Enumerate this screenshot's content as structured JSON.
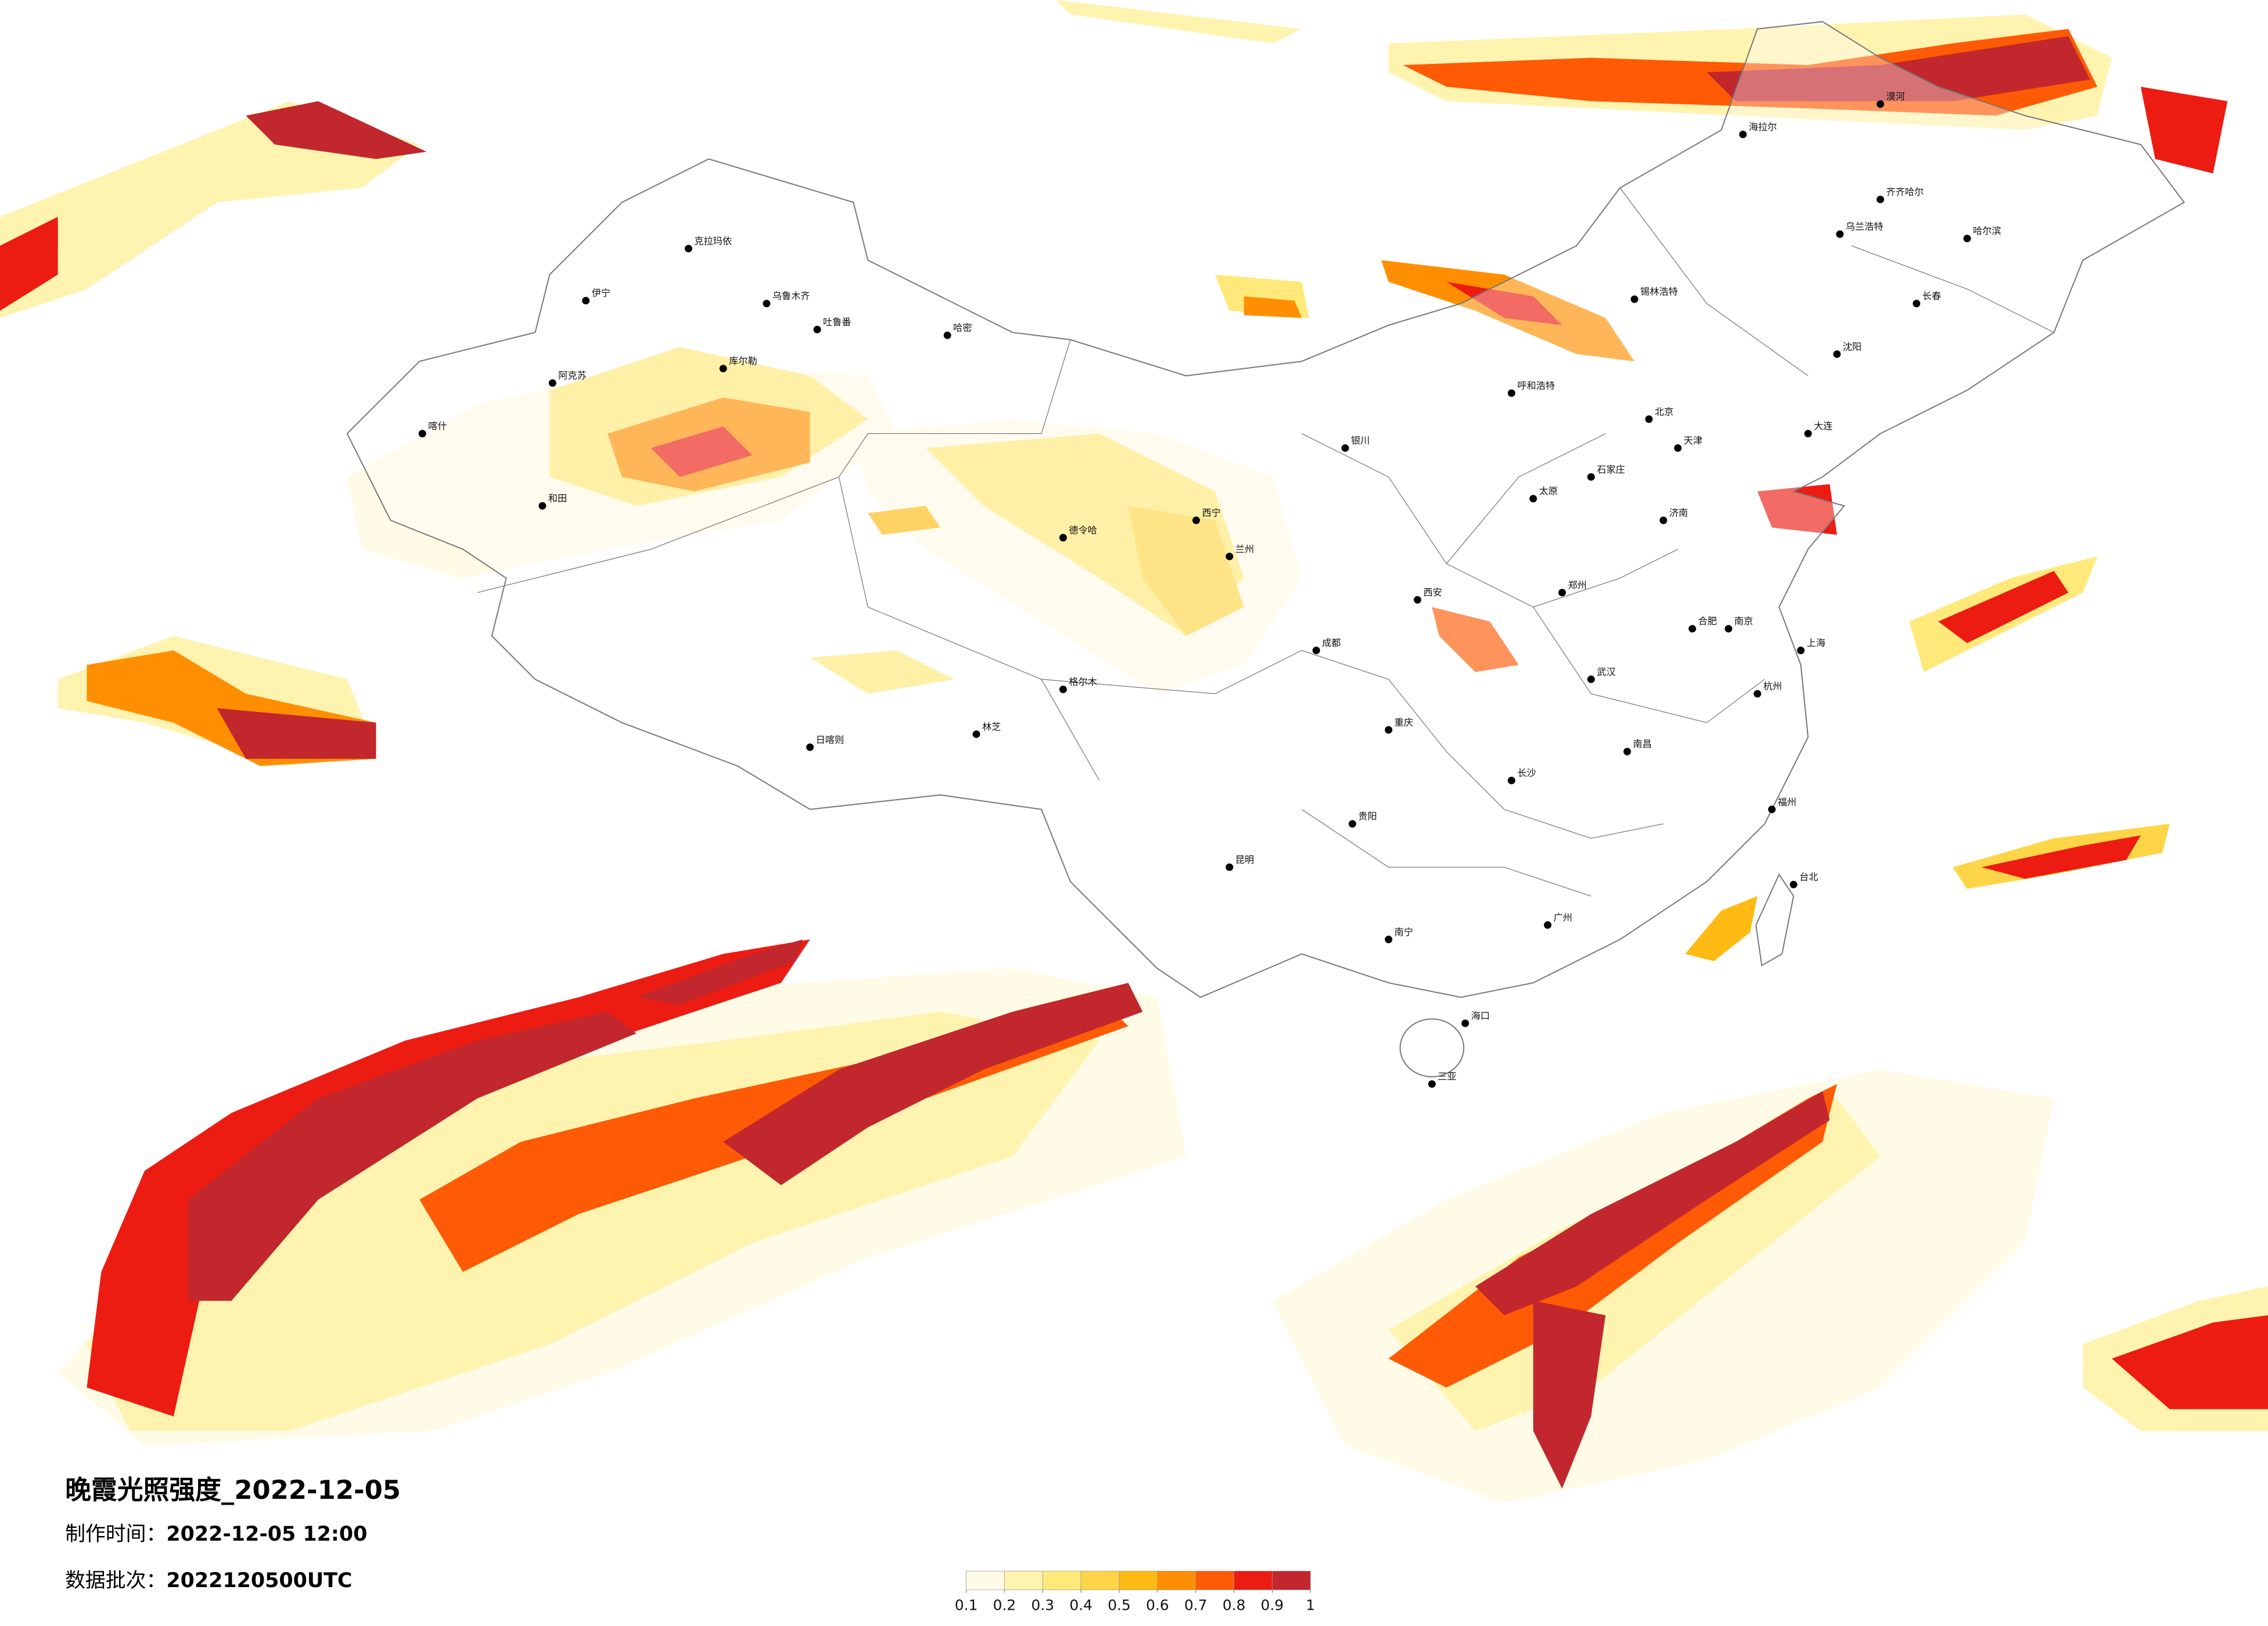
{
  "map": {
    "title": "晚霞光照强度_2022-12-05",
    "production_time": {
      "label": "制作时间：",
      "value": "2022-12-05 12:00"
    },
    "data_batch": {
      "label": "数据批次：",
      "value": "2022120500UTC"
    },
    "legend": {
      "ticks": [
        0.1,
        0.2,
        0.3,
        0.4,
        0.5,
        0.6,
        0.7,
        0.8,
        0.9,
        1
      ],
      "colors": [
        "#fffbe6",
        "#fff3b0",
        "#ffe97a",
        "#ffd548",
        "#ffbb14",
        "#ff8f00",
        "#ff5a05",
        "#ec1c12",
        "#c1272d"
      ]
    },
    "cities": [
      {
        "name": "克拉玛依"
      },
      {
        "name": "乌鲁木齐"
      },
      {
        "name": "伊宁"
      },
      {
        "name": "吐鲁番"
      },
      {
        "name": "哈密"
      },
      {
        "name": "阿克苏"
      },
      {
        "name": "喀什"
      },
      {
        "name": "和田"
      },
      {
        "name": "库尔勒"
      },
      {
        "name": "格尔木"
      },
      {
        "name": "日喀则"
      },
      {
        "name": "林芝"
      },
      {
        "name": "西宁"
      },
      {
        "name": "兰州"
      },
      {
        "name": "银川"
      },
      {
        "name": "呼和浩特"
      },
      {
        "name": "北京"
      },
      {
        "name": "天津"
      },
      {
        "name": "石家庄"
      },
      {
        "name": "太原"
      },
      {
        "name": "济南"
      },
      {
        "name": "郑州"
      },
      {
        "name": "西安"
      },
      {
        "name": "成都"
      },
      {
        "name": "重庆"
      },
      {
        "name": "贵阳"
      },
      {
        "name": "昆明"
      },
      {
        "name": "南宁"
      },
      {
        "name": "广州"
      },
      {
        "name": "长沙"
      },
      {
        "name": "武汉"
      },
      {
        "name": "南昌"
      },
      {
        "name": "合肥"
      },
      {
        "name": "南京"
      },
      {
        "name": "上海"
      },
      {
        "name": "杭州"
      },
      {
        "name": "福州"
      },
      {
        "name": "哈尔滨"
      },
      {
        "name": "长春"
      },
      {
        "name": "沈阳"
      },
      {
        "name": "大连"
      },
      {
        "name": "齐齐哈尔"
      },
      {
        "name": "海口"
      },
      {
        "name": "三亚"
      },
      {
        "name": "台北"
      },
      {
        "name": "乌兰浩特"
      },
      {
        "name": "锡林浩特"
      },
      {
        "name": "海拉尔"
      },
      {
        "name": "漠河"
      },
      {
        "name": "德令哈"
      }
    ]
  }
}
